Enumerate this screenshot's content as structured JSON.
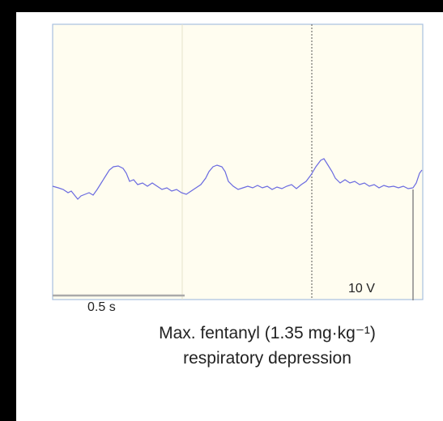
{
  "figure": {
    "time_scale_label": "0.5 s",
    "amplitude_scale_label": "10 V",
    "caption": [
      "Max. fentanyl (1.35 mg·kg⁻¹)",
      "respiratory depression"
    ]
  }
}
